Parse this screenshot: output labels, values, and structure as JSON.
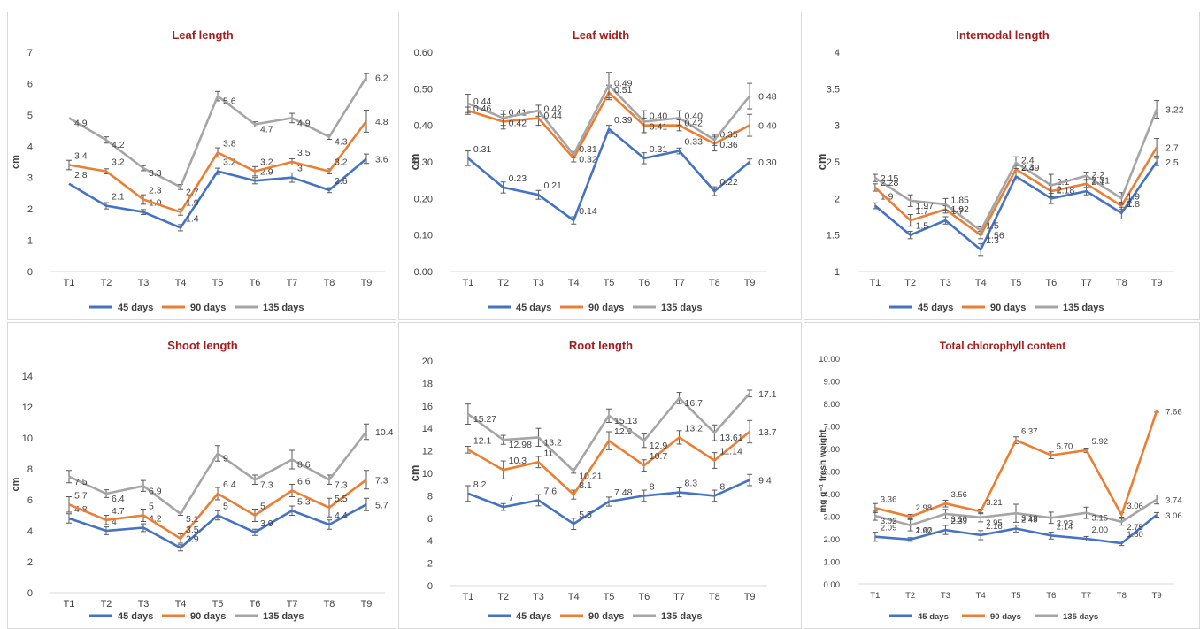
{
  "chart_data": [
    {
      "type": "line",
      "title": "Leaf length",
      "ylabel": "cm",
      "ylim": [
        0,
        7
      ],
      "yticks": [
        "0",
        "1",
        "2",
        "3",
        "4",
        "5",
        "6",
        "7"
      ],
      "categories": [
        "T1",
        "T2",
        "T3",
        "T4",
        "T5",
        "T6",
        "T7",
        "T8",
        "T9"
      ],
      "legend": "bottom",
      "series": [
        {
          "name": "45 days",
          "color": "#4472c4",
          "values": [
            2.8,
            2.1,
            1.9,
            1.4,
            3.2,
            2.9,
            3.0,
            2.6,
            3.6
          ],
          "labels": [
            "2.8",
            "2.1",
            "1.9",
            "1.4",
            "3.2",
            "2.9",
            "3",
            "2.6",
            "3.6"
          ],
          "errors": [
            0.0,
            0.1,
            0.08,
            0.1,
            0.1,
            0.1,
            0.15,
            0.08,
            0.15
          ]
        },
        {
          "name": "90 days",
          "color": "#ed7d31",
          "values": [
            3.4,
            3.2,
            2.3,
            1.9,
            3.8,
            3.2,
            3.5,
            3.2,
            4.8
          ],
          "labels": [
            "3.4",
            "3.2",
            "2.3",
            "1.9",
            "3.8",
            "3.2",
            "3.5",
            "3.2",
            "4.8"
          ],
          "errors": [
            0.15,
            0.08,
            0.15,
            0.1,
            0.15,
            0.15,
            0.1,
            0.08,
            0.35
          ]
        },
        {
          "name": "135 days",
          "color": "#a5a5a5",
          "values": [
            4.9,
            4.2,
            3.3,
            2.7,
            5.6,
            4.7,
            4.9,
            4.3,
            6.2
          ],
          "labels": [
            "4.9",
            "4.2",
            "3.3",
            "2.7",
            "5.6",
            "4.7",
            "4.9",
            "4.3",
            "6.2"
          ],
          "errors": [
            0.0,
            0.1,
            0.08,
            0.08,
            0.15,
            0.08,
            0.15,
            0.08,
            0.12
          ]
        }
      ]
    },
    {
      "type": "line",
      "title": "Leaf width",
      "ylabel": "cm",
      "ylim": [
        0,
        0.6
      ],
      "yticks": [
        "0.00",
        "0.10",
        "0.20",
        "0.30",
        "0.40",
        "0.50",
        "0.60"
      ],
      "categories": [
        "T1",
        "T2",
        "T3",
        "T4",
        "T5",
        "T6",
        "T7",
        "T8",
        "T9"
      ],
      "legend": "bottom",
      "series": [
        {
          "name": "45 days",
          "color": "#4472c4",
          "values": [
            0.31,
            0.23,
            0.21,
            0.14,
            0.39,
            0.31,
            0.33,
            0.22,
            0.3
          ],
          "labels": [
            "0.31",
            "0.23",
            "0.21",
            "0.14",
            "0.39",
            "0.31",
            "0.33",
            "0.22",
            "0.30"
          ],
          "errors": [
            0.02,
            0.015,
            0.012,
            0.01,
            0.01,
            0.015,
            0.008,
            0.012,
            0.008
          ]
        },
        {
          "name": "90 days",
          "color": "#ed7d31",
          "values": [
            0.44,
            0.41,
            0.42,
            0.31,
            0.49,
            0.4,
            0.4,
            0.35,
            0.4
          ],
          "labels": [
            "0.44",
            "0.41",
            "0.42",
            "0.31",
            "0.49",
            "0.40",
            "0.40",
            "0.35",
            "0.40"
          ],
          "errors": [
            0.01,
            0.02,
            0.02,
            0.01,
            0.02,
            0.02,
            0.015,
            0.02,
            0.03
          ]
        },
        {
          "name": "135 days",
          "color": "#a5a5a5",
          "values": [
            0.46,
            0.42,
            0.44,
            0.32,
            0.51,
            0.41,
            0.42,
            0.36,
            0.48
          ],
          "labels": [
            "0.46",
            "0.42",
            "0.44",
            "0.32",
            "0.51",
            "0.41",
            "0.42",
            "0.36",
            "0.48"
          ],
          "errors": [
            0.025,
            0.02,
            0.015,
            0.008,
            0.035,
            0.03,
            0.02,
            0.015,
            0.035
          ]
        }
      ]
    },
    {
      "type": "line",
      "title": "Internodal length",
      "ylabel": "cm",
      "ylim": [
        1,
        4
      ],
      "yticks": [
        "1",
        "1.5",
        "2",
        "2.5",
        "3",
        "3.5",
        "4"
      ],
      "categories": [
        "T1",
        "T2",
        "T3",
        "T4",
        "T5",
        "T6",
        "T7",
        "T8",
        "T9"
      ],
      "legend": "bottom",
      "series": [
        {
          "name": "45 days",
          "color": "#4472c4",
          "values": [
            1.9,
            1.5,
            1.7,
            1.3,
            2.3,
            2.0,
            2.1,
            1.8,
            2.5
          ],
          "labels": [
            "1.9",
            "1.5",
            "1.7",
            "1.3",
            "2.3",
            "2",
            "2.1",
            "1.8",
            "2.5"
          ],
          "errors": [
            0.04,
            0.05,
            0.05,
            0.08,
            0.05,
            0.07,
            0.05,
            0.08,
            0.05
          ]
        },
        {
          "name": "90 days",
          "color": "#ed7d31",
          "values": [
            2.15,
            1.7,
            1.85,
            1.5,
            2.4,
            2.1,
            2.2,
            1.9,
            2.7
          ],
          "labels": [
            "2.15",
            "1.7",
            "1.85",
            "1.5",
            "2.4",
            "2.1",
            "2.2",
            "1.9",
            "2.7"
          ],
          "errors": [
            0.05,
            0.08,
            0.05,
            0.05,
            0.05,
            0.08,
            0.05,
            0.05,
            0.12
          ]
        },
        {
          "name": "135 days",
          "color": "#a5a5a5",
          "values": [
            2.28,
            1.97,
            1.92,
            1.56,
            2.49,
            2.18,
            2.31,
            2.0,
            3.22
          ],
          "labels": [
            "2.28",
            "1.97",
            "1.92",
            "1.56",
            "2.49",
            "2.18",
            "2.31",
            "2",
            "3.22"
          ],
          "errors": [
            0.05,
            0.08,
            0.08,
            0.05,
            0.08,
            0.15,
            0.05,
            0.08,
            0.12
          ]
        }
      ]
    },
    {
      "type": "line",
      "title": "Shoot length",
      "ylabel": "cm",
      "ylim": [
        0,
        14
      ],
      "yticks": [
        "0",
        "2",
        "4",
        "6",
        "8",
        "10",
        "12",
        "14"
      ],
      "categories": [
        "T1",
        "T2",
        "T3",
        "T4",
        "T5",
        "T6",
        "T7",
        "T8",
        "T9"
      ],
      "legend": "bottom",
      "series": [
        {
          "name": "45 days",
          "color": "#4472c4",
          "values": [
            4.8,
            4.0,
            4.2,
            2.9,
            5.0,
            3.9,
            5.3,
            4.4,
            5.7
          ],
          "labels": [
            "4.8",
            "4",
            "4.2",
            "2.9",
            "5",
            "3.9",
            "5.3",
            "4.4",
            "5.7"
          ],
          "errors": [
            0.3,
            0.25,
            0.25,
            0.2,
            0.3,
            0.2,
            0.3,
            0.3,
            0.4
          ]
        },
        {
          "name": "90 days",
          "color": "#ed7d31",
          "values": [
            5.7,
            4.7,
            5.0,
            3.5,
            6.4,
            5.0,
            6.6,
            5.5,
            7.3
          ],
          "labels": [
            "5.7",
            "4.7",
            "5",
            "3.5",
            "6.4",
            "5",
            "6.6",
            "5.5",
            "7.3"
          ],
          "errors": [
            0.5,
            0.3,
            0.4,
            0.3,
            0.4,
            0.4,
            0.4,
            0.6,
            0.6
          ]
        },
        {
          "name": "135 days",
          "color": "#a5a5a5",
          "values": [
            7.5,
            6.4,
            6.9,
            5.1,
            9.0,
            7.3,
            8.6,
            7.3,
            10.4
          ],
          "labels": [
            "7.5",
            "6.4",
            "6.9",
            "5.1",
            "9",
            "7.3",
            "8.6",
            "7.3",
            "10.4"
          ],
          "errors": [
            0.4,
            0.25,
            0.35,
            0.1,
            0.5,
            0.3,
            0.6,
            0.3,
            0.5
          ]
        }
      ]
    },
    {
      "type": "line",
      "title": "Root length",
      "ylabel": "cm",
      "ylim": [
        0,
        20
      ],
      "yticks": [
        "0",
        "2",
        "4",
        "6",
        "8",
        "10",
        "12",
        "14",
        "16",
        "18",
        "20"
      ],
      "categories": [
        "T1",
        "T2",
        "T3",
        "T4",
        "T5",
        "T6",
        "T7",
        "T8",
        "T9"
      ],
      "legend": "bottom",
      "series": [
        {
          "name": "45 days",
          "color": "#4472c4",
          "values": [
            8.2,
            7.0,
            7.6,
            5.5,
            7.48,
            8.0,
            8.3,
            8.0,
            9.4
          ],
          "labels": [
            "8.2",
            "7",
            "7.6",
            "5.5",
            "7.48",
            "8",
            "8.3",
            "8",
            "9.4"
          ],
          "errors": [
            0.7,
            0.3,
            0.5,
            0.5,
            0.4,
            0.5,
            0.4,
            0.5,
            0.5
          ]
        },
        {
          "name": "90 days",
          "color": "#ed7d31",
          "values": [
            12.1,
            10.3,
            11.0,
            8.1,
            12.9,
            10.7,
            13.2,
            11.14,
            13.7
          ],
          "labels": [
            "12.1",
            "10.3",
            "11",
            "8.1",
            "12.9",
            "10.7",
            "13.2",
            "11.14",
            "13.7"
          ],
          "errors": [
            0.3,
            0.8,
            0.5,
            0.4,
            0.8,
            0.5,
            0.6,
            0.7,
            1.0
          ]
        },
        {
          "name": "135 days",
          "color": "#a5a5a5",
          "values": [
            15.27,
            12.98,
            13.2,
            10.21,
            15.13,
            12.9,
            16.7,
            13.61,
            17.1
          ],
          "labels": [
            "15.27",
            "12.98",
            "13.2",
            "10.21",
            "15.13",
            "12.9",
            "16.7",
            "13.61",
            "17.1"
          ],
          "errors": [
            0.9,
            0.4,
            0.8,
            0.2,
            0.6,
            0.6,
            0.5,
            0.7,
            0.3
          ]
        }
      ]
    },
    {
      "type": "line",
      "title": "Total chlorophyll content",
      "ylabel": "mg g⁻¹ fresh weight",
      "ylim": [
        0,
        10
      ],
      "yticks": [
        "0.00",
        "1.00",
        "2.00",
        "3.00",
        "4.00",
        "5.00",
        "6.00",
        "7.00",
        "8.00",
        "9.00",
        "10.00"
      ],
      "categories": [
        "T1",
        "T2",
        "T3",
        "T4",
        "T5",
        "T6",
        "T7",
        "T8",
        "T9"
      ],
      "legend": "bottom",
      "series": [
        {
          "name": "45 days",
          "color": "#4472c4",
          "values": [
            2.09,
            1.97,
            2.39,
            2.16,
            2.45,
            2.14,
            2.0,
            1.8,
            3.06
          ],
          "labels": [
            "2.09",
            "1.97",
            "2.39",
            "2.16",
            "2.45",
            "2.14",
            "2.00",
            "1.80",
            "3.06"
          ],
          "errors": [
            0.2,
            0.08,
            0.2,
            0.2,
            0.15,
            0.15,
            0.1,
            0.1,
            0.1
          ]
        },
        {
          "name": "90 days",
          "color": "#ed7d31",
          "values": [
            3.36,
            2.98,
            3.56,
            3.21,
            6.37,
            5.7,
            5.92,
            3.06,
            7.66
          ],
          "labels": [
            "3.36",
            "2.98",
            "3.56",
            "3.21",
            "6.37",
            "5.70",
            "5.92",
            "3.06",
            "7.66"
          ],
          "errors": [
            0.2,
            0.1,
            0.15,
            0.1,
            0.15,
            0.15,
            0.1,
            0.1,
            0.05
          ]
        },
        {
          "name": "135 days",
          "color": "#a5a5a5",
          "values": [
            3.02,
            2.6,
            3.1,
            2.95,
            3.13,
            2.93,
            3.15,
            2.75,
            3.74
          ],
          "labels": [
            "3.02",
            "2.60",
            "3.10",
            "2.95",
            "3.13",
            "2.93",
            "3.15",
            "2.75",
            "3.74"
          ],
          "errors": [
            0.2,
            0.25,
            0.2,
            0.2,
            0.4,
            0.25,
            0.25,
            0.15,
            0.2
          ]
        }
      ]
    }
  ]
}
